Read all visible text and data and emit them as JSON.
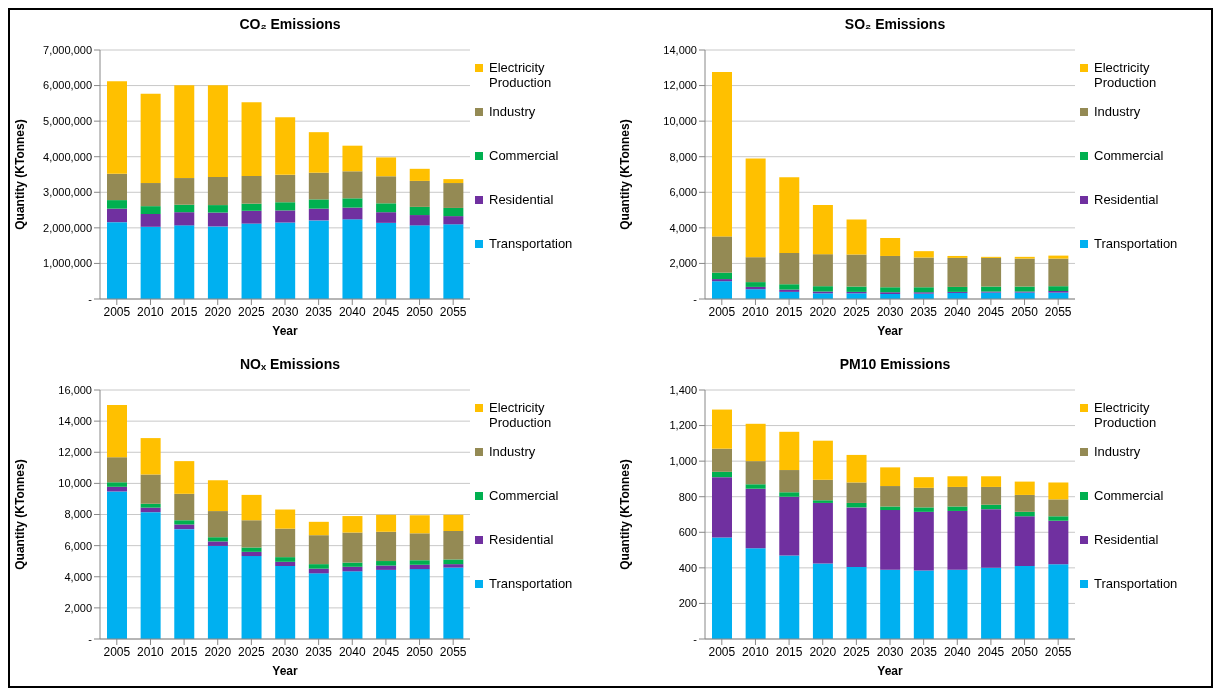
{
  "chart_data": [
    {
      "type": "bar",
      "stacked": true,
      "title": "CO₂ Emissions",
      "xlabel": "Year",
      "ylabel": "Quantity (KTonnes)",
      "categories": [
        "2005",
        "2010",
        "2015",
        "2020",
        "2025",
        "2030",
        "2035",
        "2040",
        "2045",
        "2050",
        "2055"
      ],
      "ylim": [
        0,
        7000000
      ],
      "yticks": [
        {
          "value": 0,
          "label": "-"
        },
        {
          "value": 1000000,
          "label": "1,000,000"
        },
        {
          "value": 2000000,
          "label": "2,000,000"
        },
        {
          "value": 3000000,
          "label": "3,000,000"
        },
        {
          "value": 4000000,
          "label": "4,000,000"
        },
        {
          "value": 5000000,
          "label": "5,000,000"
        },
        {
          "value": 6000000,
          "label": "6,000,000"
        },
        {
          "value": 7000000,
          "label": "7,000,000"
        }
      ],
      "grid": "y",
      "legend": "right",
      "series": [
        {
          "name": "Transportation",
          "color": "#00b0f0",
          "values": [
            2160000,
            2030000,
            2070000,
            2040000,
            2120000,
            2150000,
            2210000,
            2240000,
            2140000,
            2070000,
            2100000
          ]
        },
        {
          "name": "Residential",
          "color": "#7030a0",
          "values": [
            380000,
            360000,
            370000,
            390000,
            360000,
            340000,
            330000,
            330000,
            300000,
            290000,
            230000
          ]
        },
        {
          "name": "Commercial",
          "color": "#00b050",
          "values": [
            240000,
            220000,
            210000,
            210000,
            200000,
            230000,
            260000,
            260000,
            250000,
            230000,
            230000
          ]
        },
        {
          "name": "Industry",
          "color": "#948a54",
          "values": [
            740000,
            650000,
            750000,
            790000,
            780000,
            770000,
            750000,
            760000,
            760000,
            730000,
            700000
          ]
        },
        {
          "name": "Electricity Production",
          "color": "#ffc000",
          "values": [
            2600000,
            2510000,
            2610000,
            2580000,
            2070000,
            1620000,
            1140000,
            720000,
            530000,
            340000,
            110000
          ]
        }
      ]
    },
    {
      "type": "bar",
      "stacked": true,
      "title": "SO₂ Emissions",
      "xlabel": "Year",
      "ylabel": "Quantity (KTonnes)",
      "categories": [
        "2005",
        "2010",
        "2015",
        "2020",
        "2025",
        "2030",
        "2035",
        "2040",
        "2045",
        "2050",
        "2055"
      ],
      "ylim": [
        0,
        14000
      ],
      "yticks": [
        {
          "value": 0,
          "label": "-"
        },
        {
          "value": 2000,
          "label": "2,000"
        },
        {
          "value": 4000,
          "label": "4,000"
        },
        {
          "value": 6000,
          "label": "6,000"
        },
        {
          "value": 8000,
          "label": "8,000"
        },
        {
          "value": 10000,
          "label": "10,000"
        },
        {
          "value": 12000,
          "label": "12,000"
        },
        {
          "value": 14000,
          "label": "14,000"
        }
      ],
      "grid": "y",
      "legend": "right",
      "series": [
        {
          "name": "Transportation",
          "color": "#00b0f0",
          "values": [
            1000,
            550,
            400,
            320,
            320,
            280,
            300,
            340,
            360,
            360,
            360
          ]
        },
        {
          "name": "Residential",
          "color": "#7030a0",
          "values": [
            120,
            130,
            130,
            100,
            80,
            100,
            80,
            60,
            60,
            60,
            90
          ]
        },
        {
          "name": "Commercial",
          "color": "#00b050",
          "values": [
            360,
            270,
            300,
            300,
            300,
            280,
            280,
            280,
            280,
            280,
            270
          ]
        },
        {
          "name": "Industry",
          "color": "#948a54",
          "values": [
            2040,
            1400,
            1760,
            1800,
            1800,
            1760,
            1670,
            1630,
            1610,
            1570,
            1550
          ]
        },
        {
          "name": "Electricity Production",
          "color": "#ffc000",
          "values": [
            9240,
            5550,
            4260,
            2760,
            1970,
            1010,
            360,
            110,
            60,
            100,
            170
          ]
        }
      ]
    },
    {
      "type": "bar",
      "stacked": true,
      "title": "NOₓ Emissions",
      "xlabel": "Year",
      "ylabel": "Quantity (KTonnes)",
      "categories": [
        "2005",
        "2010",
        "2015",
        "2020",
        "2025",
        "2030",
        "2035",
        "2040",
        "2045",
        "2050",
        "2055"
      ],
      "ylim": [
        0,
        16000
      ],
      "yticks": [
        {
          "value": 0,
          "label": "-"
        },
        {
          "value": 2000,
          "label": "2,000"
        },
        {
          "value": 4000,
          "label": "4,000"
        },
        {
          "value": 6000,
          "label": "6,000"
        },
        {
          "value": 8000,
          "label": "8,000"
        },
        {
          "value": 10000,
          "label": "10,000"
        },
        {
          "value": 12000,
          "label": "12,000"
        },
        {
          "value": 14000,
          "label": "14,000"
        },
        {
          "value": 16000,
          "label": "16,000"
        }
      ],
      "grid": "y",
      "legend": "right",
      "series": [
        {
          "name": "Transportation",
          "color": "#00b0f0",
          "values": [
            9480,
            8150,
            7060,
            5980,
            5330,
            4690,
            4220,
            4350,
            4440,
            4490,
            4590
          ]
        },
        {
          "name": "Residential",
          "color": "#7030a0",
          "values": [
            300,
            290,
            300,
            290,
            270,
            270,
            300,
            290,
            280,
            280,
            220
          ]
        },
        {
          "name": "Commercial",
          "color": "#00b050",
          "values": [
            290,
            250,
            270,
            270,
            280,
            300,
            290,
            270,
            290,
            290,
            300
          ]
        },
        {
          "name": "Industry",
          "color": "#948a54",
          "values": [
            1610,
            1880,
            1700,
            1680,
            1750,
            1830,
            1860,
            1930,
            1880,
            1730,
            1830
          ]
        },
        {
          "name": "Electricity Production",
          "color": "#ffc000",
          "values": [
            3360,
            2340,
            2100,
            1980,
            1630,
            1230,
            860,
            1060,
            1090,
            1160,
            1040
          ]
        }
      ]
    },
    {
      "type": "bar",
      "stacked": true,
      "title": "PM10 Emissions",
      "xlabel": "Year",
      "ylabel": "Quantity (KTonnes)",
      "categories": [
        "2005",
        "2010",
        "2015",
        "2020",
        "2025",
        "2030",
        "2035",
        "2040",
        "2045",
        "2050",
        "2055"
      ],
      "ylim": [
        0,
        1400
      ],
      "yticks": [
        {
          "value": 0,
          "label": "-"
        },
        200,
        400,
        600,
        800,
        {
          "value": 1000,
          "label": "1,000"
        },
        {
          "value": 1200,
          "label": "1,200"
        },
        {
          "value": 1400,
          "label": "1,400"
        }
      ],
      "grid": "y",
      "legend": "right",
      "series": [
        {
          "name": "Transportation",
          "color": "#00b0f0",
          "values": [
            570,
            510,
            470,
            425,
            405,
            390,
            385,
            390,
            400,
            410,
            420
          ]
        },
        {
          "name": "Residential",
          "color": "#7030a0",
          "values": [
            340,
            335,
            330,
            340,
            335,
            335,
            330,
            330,
            330,
            280,
            245
          ]
        },
        {
          "name": "Commercial",
          "color": "#00b050",
          "values": [
            30,
            25,
            25,
            15,
            25,
            20,
            25,
            25,
            25,
            25,
            25
          ]
        },
        {
          "name": "Industry",
          "color": "#948a54",
          "values": [
            130,
            130,
            125,
            115,
            115,
            115,
            110,
            110,
            100,
            95,
            95
          ]
        },
        {
          "name": "Electricity Production",
          "color": "#ffc000",
          "values": [
            220,
            210,
            215,
            220,
            155,
            105,
            60,
            60,
            60,
            75,
            95
          ]
        }
      ]
    }
  ]
}
